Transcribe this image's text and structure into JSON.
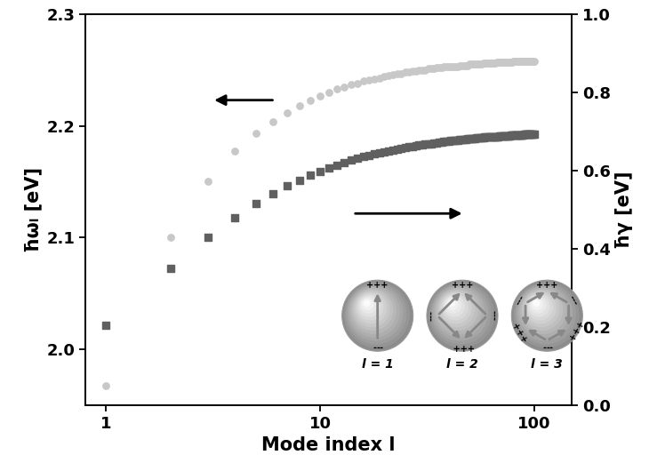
{
  "chart_data": {
    "type": "scatter",
    "xlabel": "Mode index l",
    "ylabel": "ħωₗ [eV]",
    "y2label": "ħγ [eV]",
    "log": "x",
    "x": [
      1,
      2,
      3,
      4,
      5,
      6,
      7,
      8,
      9,
      10,
      11,
      12,
      13,
      14,
      15,
      16,
      17,
      18,
      19,
      20,
      21,
      22,
      23,
      24,
      25,
      26,
      27,
      28,
      29,
      30,
      31,
      32,
      33,
      34,
      35,
      36,
      37,
      38,
      39,
      40,
      41,
      42,
      43,
      44,
      45,
      46,
      47,
      48,
      49,
      50,
      51,
      52,
      53,
      54,
      55,
      56,
      57,
      58,
      59,
      60,
      61,
      62,
      63,
      64,
      65,
      66,
      67,
      68,
      69,
      70,
      71,
      72,
      73,
      74,
      75,
      76,
      77,
      78,
      79,
      80,
      81,
      82,
      83,
      84,
      85,
      86,
      87,
      88,
      89,
      90,
      91,
      92,
      93,
      94,
      95,
      96,
      97,
      98,
      99,
      100
    ],
    "xlim": [
      0.8,
      150
    ],
    "xticks": [
      1,
      10,
      100
    ],
    "ylim": [
      1.95,
      2.3
    ],
    "yticks": [
      {
        "value": 2.0,
        "label": "2.0"
      },
      {
        "value": 2.1,
        "label": "2.1"
      },
      {
        "value": 2.2,
        "label": "2.2"
      },
      {
        "value": 2.3,
        "label": "2.3"
      }
    ],
    "y2lim": [
      0.0,
      1.0
    ],
    "y2ticks": [
      {
        "value": 0.0,
        "label": "0.0"
      },
      {
        "value": 0.2,
        "label": "0.2"
      },
      {
        "value": 0.4,
        "label": "0.4"
      },
      {
        "value": 0.6,
        "label": "0.6"
      },
      {
        "value": 0.8,
        "label": "0.8"
      },
      {
        "value": 1.0,
        "label": "1.0"
      }
    ],
    "series": [
      {
        "color": "#c8c8c8",
        "marker": "circle",
        "axis": "y",
        "values": [
          1.967,
          2.1,
          2.15,
          2.177,
          2.193,
          2.204,
          2.212,
          2.218,
          2.223,
          2.227,
          2.23,
          2.233,
          2.235,
          2.237,
          2.238,
          2.24,
          2.241,
          2.242,
          2.243,
          2.244,
          2.245,
          2.246,
          2.247,
          2.247,
          2.248,
          2.248,
          2.249,
          2.249,
          2.25,
          2.25,
          2.25,
          2.251,
          2.251,
          2.251,
          2.252,
          2.252,
          2.252,
          2.253,
          2.253,
          2.253,
          2.253,
          2.253,
          2.253,
          2.253,
          2.254,
          2.254,
          2.254,
          2.254,
          2.254,
          2.255,
          2.255,
          2.255,
          2.255,
          2.255,
          2.255,
          2.255,
          2.255,
          2.256,
          2.256,
          2.256,
          2.256,
          2.256,
          2.256,
          2.256,
          2.256,
          2.256,
          2.257,
          2.257,
          2.257,
          2.257,
          2.257,
          2.257,
          2.257,
          2.257,
          2.257,
          2.257,
          2.257,
          2.257,
          2.257,
          2.258,
          2.258,
          2.258,
          2.258,
          2.258,
          2.258,
          2.258,
          2.258,
          2.258,
          2.258,
          2.258,
          2.258,
          2.258,
          2.258,
          2.258,
          2.258,
          2.258,
          2.258,
          2.258,
          2.258,
          2.258
        ]
      },
      {
        "color": "#606060",
        "marker": "square",
        "axis": "y2",
        "values": [
          0.205,
          0.35,
          0.43,
          0.48,
          0.515,
          0.541,
          0.56,
          0.575,
          0.588,
          0.598,
          0.607,
          0.614,
          0.62,
          0.626,
          0.631,
          0.635,
          0.639,
          0.642,
          0.645,
          0.648,
          0.65,
          0.653,
          0.655,
          0.657,
          0.659,
          0.66,
          0.662,
          0.663,
          0.665,
          0.666,
          0.667,
          0.668,
          0.669,
          0.67,
          0.671,
          0.672,
          0.673,
          0.674,
          0.675,
          0.675,
          0.676,
          0.677,
          0.677,
          0.678,
          0.679,
          0.679,
          0.68,
          0.68,
          0.681,
          0.681,
          0.682,
          0.682,
          0.682,
          0.683,
          0.683,
          0.684,
          0.684,
          0.684,
          0.685,
          0.685,
          0.685,
          0.686,
          0.686,
          0.686,
          0.687,
          0.687,
          0.687,
          0.687,
          0.688,
          0.688,
          0.688,
          0.688,
          0.689,
          0.689,
          0.689,
          0.689,
          0.689,
          0.69,
          0.69,
          0.69,
          0.69,
          0.69,
          0.691,
          0.691,
          0.691,
          0.691,
          0.691,
          0.691,
          0.691,
          0.692,
          0.692,
          0.692,
          0.692,
          0.692,
          0.692,
          0.692,
          0.693,
          0.693,
          0.693,
          0.693
        ]
      }
    ]
  },
  "insets": [
    {
      "label": "l = 1",
      "charges": [
        "+++",
        "---"
      ]
    },
    {
      "label": "l = 2",
      "charges": [
        "+++",
        "---",
        "+++",
        "---"
      ]
    },
    {
      "label": "l = 3",
      "charges": [
        "+++",
        "---",
        "+++",
        "---",
        "+++",
        "---"
      ]
    }
  ]
}
